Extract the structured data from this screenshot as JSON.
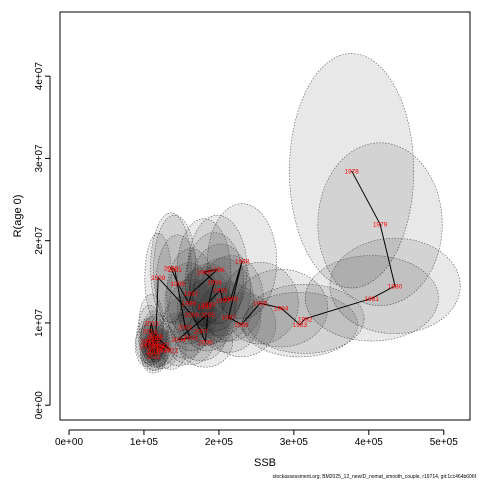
{
  "chart_data": {
    "type": "scatter",
    "xlabel": "SSB",
    "ylabel": "R(age 0)",
    "xlim": [
      -12000,
      535000
    ],
    "ylim": [
      -1800000,
      47800000
    ],
    "x_tick_values": [
      0,
      100000,
      200000,
      300000,
      400000,
      500000
    ],
    "x_tick_labels": [
      "0e+00",
      "1e+05",
      "2e+05",
      "3e+05",
      "4e+05",
      "5e+05"
    ],
    "y_tick_values": [
      0,
      10000000,
      20000000,
      30000000,
      40000000
    ],
    "y_tick_labels": [
      "0e+00",
      "1e+07",
      "2e+07",
      "3e+07",
      "4e+07"
    ],
    "caption": "stockassessment.org, BM2025_12_newID_nomat_smooth_couple, r19714, git:1cc464b606f",
    "points": [
      {
        "year": "1978",
        "ssb": 377000,
        "rec": 28500000,
        "unc": [
          0.22,
          0.5
        ]
      },
      {
        "year": "1979",
        "ssb": 415000,
        "rec": 22000000,
        "unc": [
          0.2,
          0.45
        ]
      },
      {
        "year": "1980",
        "ssb": 435000,
        "rec": 14500000,
        "unc": [
          0.2,
          0.4
        ]
      },
      {
        "year": "1981",
        "ssb": 404000,
        "rec": 13000000,
        "unc": [
          0.22,
          0.4
        ]
      },
      {
        "year": "1982",
        "ssb": 315000,
        "rec": 10500000,
        "unc": [
          0.25,
          0.4
        ]
      },
      {
        "year": "1983",
        "ssb": 308000,
        "rec": 9800000,
        "unc": [
          0.25,
          0.4
        ]
      },
      {
        "year": "1984",
        "ssb": 283000,
        "rec": 11800000,
        "unc": [
          0.22,
          0.4
        ]
      },
      {
        "year": "1985",
        "ssb": 255000,
        "rec": 12400000,
        "unc": [
          0.2,
          0.4
        ]
      },
      {
        "year": "1986",
        "ssb": 230000,
        "rec": 9800000,
        "unc": [
          0.2,
          0.4
        ]
      },
      {
        "year": "1987",
        "ssb": 213000,
        "rec": 10700000,
        "unc": [
          0.2,
          0.4
        ]
      },
      {
        "year": "1988",
        "ssb": 231000,
        "rec": 17500000,
        "unc": [
          0.2,
          0.4
        ]
      },
      {
        "year": "1989",
        "ssb": 216000,
        "rec": 13000000,
        "unc": [
          0.2,
          0.4
        ]
      },
      {
        "year": "1990",
        "ssb": 205000,
        "rec": 12800000,
        "unc": [
          0.2,
          0.4
        ]
      },
      {
        "year": "1991",
        "ssb": 202000,
        "rec": 14000000,
        "unc": [
          0.2,
          0.4
        ]
      },
      {
        "year": "1992",
        "ssb": 181000,
        "rec": 12000000,
        "unc": [
          0.2,
          0.4
        ]
      },
      {
        "year": "1993",
        "ssb": 186000,
        "rec": 12300000,
        "unc": [
          0.2,
          0.4
        ]
      },
      {
        "year": "1994",
        "ssb": 194000,
        "rec": 15000000,
        "unc": [
          0.2,
          0.4
        ]
      },
      {
        "year": "1995",
        "ssb": 180000,
        "rec": 16200000,
        "unc": [
          0.2,
          0.4
        ]
      },
      {
        "year": "1996",
        "ssb": 198000,
        "rec": 16500000,
        "unc": [
          0.2,
          0.4
        ]
      },
      {
        "year": "1997",
        "ssb": 163000,
        "rec": 13600000,
        "unc": [
          0.2,
          0.4
        ]
      },
      {
        "year": "1998",
        "ssb": 160000,
        "rec": 12400000,
        "unc": [
          0.2,
          0.4
        ]
      },
      {
        "year": "1999",
        "ssb": 145000,
        "rec": 14800000,
        "unc": [
          0.2,
          0.4
        ]
      },
      {
        "year": "2000",
        "ssb": 136000,
        "rec": 16700000,
        "unc": [
          0.2,
          0.4
        ]
      },
      {
        "year": "2001",
        "ssb": 141000,
        "rec": 16500000,
        "unc": [
          0.2,
          0.4
        ]
      },
      {
        "year": "2002",
        "ssb": 155000,
        "rec": 9500000,
        "unc": [
          0.2,
          0.4
        ]
      },
      {
        "year": "2003",
        "ssb": 162000,
        "rec": 8200000,
        "unc": [
          0.2,
          0.4
        ]
      },
      {
        "year": "2004",
        "ssb": 146000,
        "rec": 8000000,
        "unc": [
          0.2,
          0.4
        ]
      },
      {
        "year": "2005",
        "ssb": 185000,
        "rec": 11000000,
        "unc": [
          0.2,
          0.4
        ]
      },
      {
        "year": "2006",
        "ssb": 182000,
        "rec": 7700000,
        "unc": [
          0.2,
          0.4
        ]
      },
      {
        "year": "2007",
        "ssb": 176000,
        "rec": 9000000,
        "unc": [
          0.2,
          0.4
        ]
      },
      {
        "year": "2008",
        "ssb": 164000,
        "rec": 11000000,
        "unc": [
          0.2,
          0.4
        ]
      },
      {
        "year": "2009",
        "ssb": 119000,
        "rec": 15500000,
        "unc": [
          0.15,
          0.35
        ]
      },
      {
        "year": "2010",
        "ssb": 115000,
        "rec": 6500000,
        "unc": [
          0.15,
          0.35
        ]
      },
      {
        "year": "2011",
        "ssb": 113000,
        "rec": 6000000,
        "unc": [
          0.15,
          0.35
        ]
      },
      {
        "year": "2012",
        "ssb": 116000,
        "rec": 7000000,
        "unc": [
          0.15,
          0.35
        ]
      },
      {
        "year": "2013",
        "ssb": 110000,
        "rec": 10000000,
        "unc": [
          0.15,
          0.35
        ]
      },
      {
        "year": "2014",
        "ssb": 108000,
        "rec": 9000000,
        "unc": [
          0.15,
          0.35
        ]
      },
      {
        "year": "2015",
        "ssb": 116000,
        "rec": 8200000,
        "unc": [
          0.15,
          0.35
        ]
      },
      {
        "year": "2016",
        "ssb": 105000,
        "rec": 7800000,
        "unc": [
          0.15,
          0.35
        ]
      },
      {
        "year": "2017",
        "ssb": 104000,
        "rec": 7200000,
        "unc": [
          0.15,
          0.35
        ]
      },
      {
        "year": "2018",
        "ssb": 112000,
        "rec": 6500000,
        "unc": [
          0.15,
          0.35
        ]
      },
      {
        "year": "2019",
        "ssb": 110000,
        "rec": 7500000,
        "unc": [
          0.15,
          0.35
        ]
      },
      {
        "year": "2020",
        "ssb": 114000,
        "rec": 8500000,
        "unc": [
          0.15,
          0.35
        ]
      },
      {
        "year": "2021",
        "ssb": 136000,
        "rec": 6700000,
        "unc": [
          0.15,
          0.35
        ]
      },
      {
        "year": "2022",
        "ssb": 124000,
        "rec": 7400000,
        "unc": [
          0.15,
          0.35
        ]
      },
      {
        "year": "2023",
        "ssb": 126000,
        "rec": 6800000,
        "unc": [
          0.15,
          0.35
        ]
      },
      {
        "year": "2024",
        "ssb": 118000,
        "rec": 7200000,
        "unc": [
          0.15,
          0.35
        ]
      },
      {
        "year": "2025",
        "ssb": 112000,
        "rec": 8000000,
        "unc": [
          0.15,
          0.35
        ]
      }
    ]
  }
}
